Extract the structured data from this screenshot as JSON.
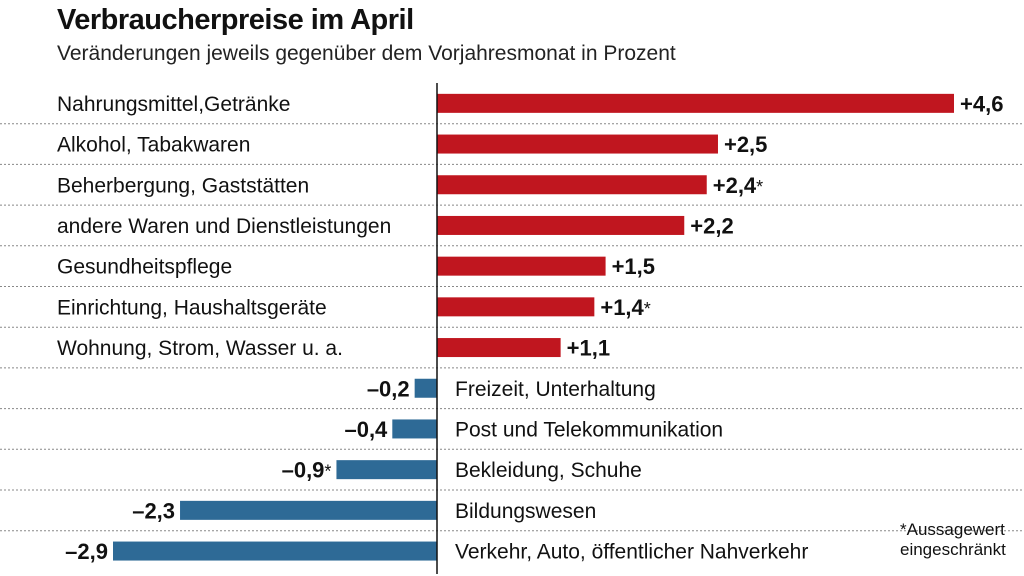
{
  "header": {
    "title": "Verbraucherpreise im April",
    "subtitle": "Veränderungen jeweils gegenüber dem Vorjahresmonat in Prozent"
  },
  "footnote": {
    "line1": "*Aussagewert",
    "line2": "eingeschränkt"
  },
  "colors": {
    "positive": "#c0161f",
    "negative": "#2e6a96",
    "separator": "#888888",
    "axis": "#111111"
  },
  "chart_data": {
    "type": "bar",
    "orientation": "horizontal",
    "categories": [
      "Nahrungsmittel,Getränke",
      "Alkohol, Tabakwaren",
      "Beherbergung, Gaststätten",
      "andere Waren und Dienstleistungen",
      "Gesundheitspflege",
      "Einrichtung, Haushaltsgeräte",
      "Wohnung, Strom, Wasser u. a.",
      "Freizeit, Unterhaltung",
      "Post und Telekommunikation",
      "Bekleidung, Schuhe",
      "Bildungswesen",
      "Verkehr, Auto, öffentlicher Nahverkehr"
    ],
    "values": [
      4.6,
      2.5,
      2.4,
      2.2,
      1.5,
      1.4,
      1.1,
      -0.2,
      -0.4,
      -0.9,
      -2.3,
      -2.9
    ],
    "value_labels": [
      "+4,6",
      "+2,5",
      "+2,4",
      "+2,2",
      "+1,5",
      "+1,4",
      "+1,1",
      "–0,2",
      "–0,4",
      "–0,9",
      "–2,3",
      "–2,9"
    ],
    "asterisk": [
      false,
      false,
      true,
      false,
      false,
      true,
      false,
      false,
      false,
      true,
      false,
      false
    ],
    "xlim": [
      -2.9,
      4.6
    ],
    "grid": false
  }
}
